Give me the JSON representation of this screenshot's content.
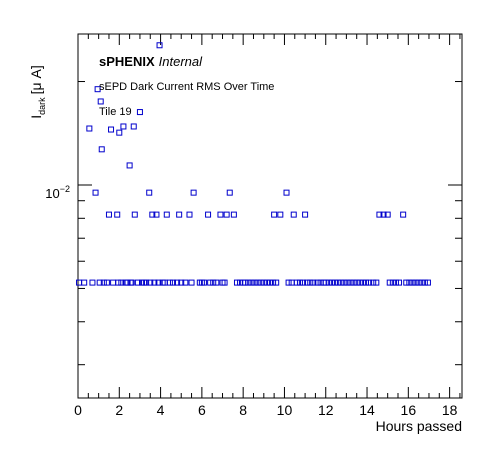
{
  "chart_data": {
    "type": "scatter",
    "title": "",
    "xlabel": "Hours passed",
    "ylabel_main": "I",
    "ylabel_sub": "dark",
    "ylabel_units": "[μ A]",
    "log_y": true,
    "xlim": [
      0,
      18.6
    ],
    "ylim": [
      0.0024,
      0.0275
    ],
    "x_ticks": [
      0,
      2,
      4,
      6,
      8,
      10,
      12,
      14,
      16,
      18
    ],
    "y_tick_label": {
      "base": "10",
      "exponent": "−2",
      "value": 0.01
    },
    "marker_color": "#0000cc",
    "annotations": {
      "brand_bold": "sPHENIX",
      "brand_italic": "Internal",
      "subtitle": "sEPD Dark Current RMS Over Time",
      "tile": "Tile 19"
    },
    "points": [
      [
        0.05,
        0.0052
      ],
      [
        0.3,
        0.0052
      ],
      [
        0.55,
        0.0146
      ],
      [
        0.7,
        0.0052
      ],
      [
        0.85,
        0.0095
      ],
      [
        0.95,
        0.019
      ],
      [
        1.05,
        0.0052
      ],
      [
        1.1,
        0.0175
      ],
      [
        1.15,
        0.0127
      ],
      [
        1.25,
        0.0052
      ],
      [
        1.4,
        0.0052
      ],
      [
        1.5,
        0.0082
      ],
      [
        1.6,
        0.0145
      ],
      [
        1.7,
        0.0052
      ],
      [
        1.9,
        0.0082
      ],
      [
        1.95,
        0.0052
      ],
      [
        2.0,
        0.0142
      ],
      [
        2.1,
        0.0052
      ],
      [
        2.2,
        0.0148
      ],
      [
        2.3,
        0.0052
      ],
      [
        2.4,
        0.0052
      ],
      [
        2.5,
        0.0114
      ],
      [
        2.55,
        0.0052
      ],
      [
        2.6,
        0.0052
      ],
      [
        2.7,
        0.0148
      ],
      [
        2.75,
        0.0082
      ],
      [
        2.9,
        0.0052
      ],
      [
        3.0,
        0.0163
      ],
      [
        3.1,
        0.0052
      ],
      [
        3.2,
        0.0052
      ],
      [
        3.3,
        0.0052
      ],
      [
        3.45,
        0.0095
      ],
      [
        3.5,
        0.0052
      ],
      [
        3.6,
        0.0082
      ],
      [
        3.7,
        0.0052
      ],
      [
        3.8,
        0.0082
      ],
      [
        3.9,
        0.0052
      ],
      [
        3.95,
        0.0255
      ],
      [
        4.1,
        0.0052
      ],
      [
        4.2,
        0.0052
      ],
      [
        4.3,
        0.0082
      ],
      [
        4.45,
        0.0052
      ],
      [
        4.6,
        0.0052
      ],
      [
        4.8,
        0.0052
      ],
      [
        4.9,
        0.0082
      ],
      [
        5.0,
        0.0052
      ],
      [
        5.2,
        0.0052
      ],
      [
        5.4,
        0.0082
      ],
      [
        5.5,
        0.0052
      ],
      [
        5.6,
        0.0095
      ],
      [
        5.9,
        0.0052
      ],
      [
        6.0,
        0.0052
      ],
      [
        6.1,
        0.0052
      ],
      [
        6.3,
        0.0082
      ],
      [
        6.4,
        0.0052
      ],
      [
        6.55,
        0.0052
      ],
      [
        6.7,
        0.0052
      ],
      [
        6.9,
        0.0082
      ],
      [
        7.0,
        0.0052
      ],
      [
        7.1,
        0.0052
      ],
      [
        7.2,
        0.0082
      ],
      [
        7.35,
        0.0095
      ],
      [
        7.55,
        0.0082
      ],
      [
        7.7,
        0.0052
      ],
      [
        7.85,
        0.0052
      ],
      [
        8.0,
        0.0052
      ],
      [
        8.1,
        0.0052
      ],
      [
        8.25,
        0.0052
      ],
      [
        8.4,
        0.0052
      ],
      [
        8.55,
        0.0052
      ],
      [
        8.7,
        0.0052
      ],
      [
        8.85,
        0.0052
      ],
      [
        9.0,
        0.0052
      ],
      [
        9.15,
        0.0052
      ],
      [
        9.3,
        0.0052
      ],
      [
        9.45,
        0.0052
      ],
      [
        9.6,
        0.0052
      ],
      [
        9.5,
        0.0082
      ],
      [
        9.8,
        0.0082
      ],
      [
        10.1,
        0.0095
      ],
      [
        10.2,
        0.0052
      ],
      [
        10.35,
        0.0052
      ],
      [
        10.45,
        0.0082
      ],
      [
        10.6,
        0.0052
      ],
      [
        10.75,
        0.0052
      ],
      [
        10.9,
        0.0052
      ],
      [
        11.0,
        0.0082
      ],
      [
        11.1,
        0.0052
      ],
      [
        11.25,
        0.0052
      ],
      [
        11.4,
        0.0052
      ],
      [
        11.6,
        0.0052
      ],
      [
        11.75,
        0.0052
      ],
      [
        11.9,
        0.0052
      ],
      [
        12.0,
        0.0052
      ],
      [
        12.15,
        0.0052
      ],
      [
        12.3,
        0.0052
      ],
      [
        12.45,
        0.0052
      ],
      [
        12.6,
        0.0052
      ],
      [
        12.75,
        0.0052
      ],
      [
        12.9,
        0.0052
      ],
      [
        13.05,
        0.0052
      ],
      [
        13.2,
        0.0052
      ],
      [
        13.35,
        0.0052
      ],
      [
        13.5,
        0.0052
      ],
      [
        13.65,
        0.0052
      ],
      [
        13.8,
        0.0052
      ],
      [
        13.95,
        0.0052
      ],
      [
        14.1,
        0.0052
      ],
      [
        14.3,
        0.0052
      ],
      [
        14.45,
        0.0052
      ],
      [
        14.6,
        0.0082
      ],
      [
        14.8,
        0.0082
      ],
      [
        15.0,
        0.0082
      ],
      [
        15.1,
        0.0052
      ],
      [
        15.25,
        0.0052
      ],
      [
        15.4,
        0.0052
      ],
      [
        15.55,
        0.0052
      ],
      [
        15.75,
        0.0082
      ],
      [
        15.9,
        0.0052
      ],
      [
        16.05,
        0.0052
      ],
      [
        16.2,
        0.0052
      ],
      [
        16.35,
        0.0052
      ],
      [
        16.5,
        0.0052
      ],
      [
        16.65,
        0.0052
      ],
      [
        16.8,
        0.0052
      ],
      [
        16.95,
        0.0052
      ]
    ]
  }
}
